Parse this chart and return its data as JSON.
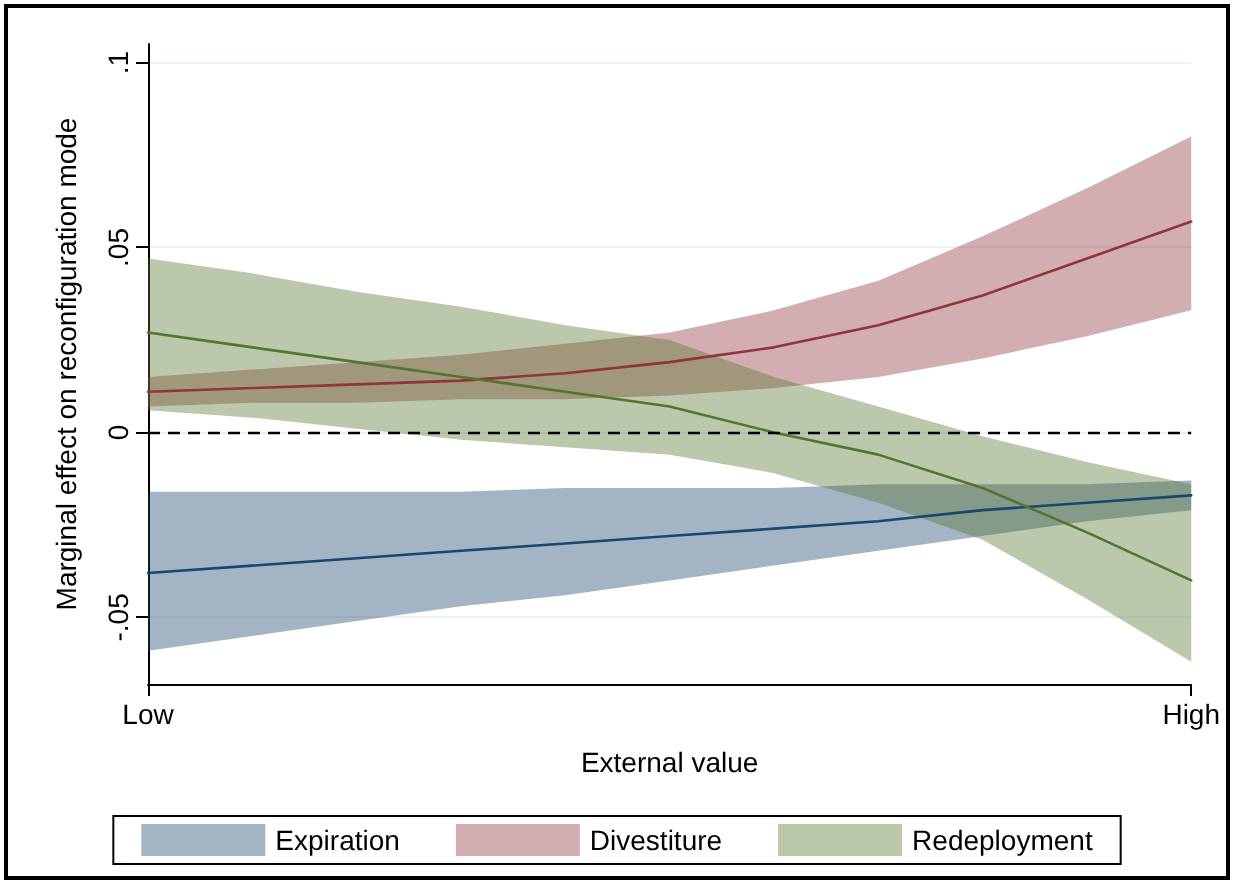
{
  "chart_data": {
    "type": "line",
    "xlabel": "External value",
    "ylabel": "Marginal effect on reconfiguration mode",
    "categories": [
      "Low",
      null,
      null,
      null,
      null,
      null,
      null,
      null,
      null,
      null,
      "High"
    ],
    "ylim": [
      -0.068,
      0.105
    ],
    "yticks": [
      {
        "value": -0.05,
        "label": "-.05"
      },
      {
        "value": 0,
        "label": "0"
      },
      {
        "value": 0.05,
        "label": ".05"
      },
      {
        "value": 0.1,
        "label": ".1"
      }
    ],
    "series": [
      {
        "name": "Expiration",
        "color": "#1a476f",
        "values": [
          -0.038,
          -0.036,
          -0.034,
          -0.032,
          -0.03,
          -0.028,
          -0.026,
          -0.024,
          -0.021,
          -0.019,
          -0.017
        ],
        "lower": [
          -0.059,
          -0.055,
          -0.051,
          -0.047,
          -0.044,
          -0.04,
          -0.036,
          -0.032,
          -0.028,
          -0.024,
          -0.021
        ],
        "upper": [
          -0.016,
          -0.016,
          -0.016,
          -0.016,
          -0.015,
          -0.015,
          -0.015,
          -0.014,
          -0.014,
          -0.014,
          -0.013
        ]
      },
      {
        "name": "Divestiture",
        "color": "#90353b",
        "values": [
          0.011,
          0.012,
          0.013,
          0.014,
          0.016,
          0.019,
          0.023,
          0.029,
          0.037,
          0.047,
          0.057
        ],
        "lower": [
          0.007,
          0.008,
          0.008,
          0.009,
          0.009,
          0.01,
          0.012,
          0.015,
          0.02,
          0.026,
          0.033
        ],
        "upper": [
          0.015,
          0.017,
          0.019,
          0.021,
          0.024,
          0.027,
          0.033,
          0.041,
          0.053,
          0.066,
          0.08
        ]
      },
      {
        "name": "Redeployment",
        "color": "#55752f",
        "values": [
          0.027,
          0.023,
          0.019,
          0.015,
          0.011,
          0.007,
          0.0,
          -0.006,
          -0.015,
          -0.027,
          -0.04
        ],
        "lower": [
          0.006,
          0.004,
          0.001,
          -0.002,
          -0.004,
          -0.006,
          -0.011,
          -0.019,
          -0.029,
          -0.045,
          -0.062
        ],
        "upper": [
          0.047,
          0.043,
          0.038,
          0.034,
          0.029,
          0.025,
          0.015,
          0.007,
          -0.001,
          -0.008,
          -0.014
        ]
      }
    ],
    "ref_lines": [
      {
        "axis": "y",
        "value": 0,
        "color": "#000000",
        "line_style": "dashed"
      }
    ],
    "grid": "y",
    "legend": "bottom",
    "marker": "none",
    "line_style": "solid"
  }
}
